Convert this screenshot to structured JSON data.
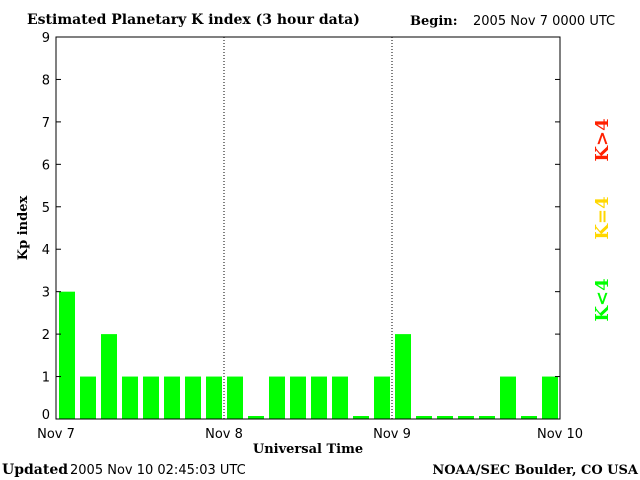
{
  "chart_data": {
    "type": "bar",
    "title": "Estimated Planetary K index (3 hour data)",
    "begin_label": "Begin:",
    "begin_value": "2005 Nov 7 0000 UTC",
    "xlabel": "Universal Time",
    "ylabel": "Kp index",
    "ylim": [
      0,
      9
    ],
    "yticks": [
      "0",
      "1",
      "2",
      "3",
      "4",
      "5",
      "6",
      "7",
      "8",
      "9"
    ],
    "xticks": [
      "Nov 7",
      "Nov 8",
      "Nov 9",
      "Nov 10"
    ],
    "interval_hours": 3,
    "values": [
      3,
      1,
      2,
      1,
      1,
      1,
      1,
      1,
      1,
      0,
      1,
      1,
      1,
      1,
      0,
      1,
      2,
      0,
      0,
      0,
      0,
      1,
      0,
      1
    ],
    "legend": [
      {
        "label": "K<4",
        "color": "#00ff00"
      },
      {
        "label": "K=4",
        "color": "#ffd700"
      },
      {
        "label": "K>4",
        "color": "#ff2000"
      }
    ],
    "legend_placement": "right",
    "footer_left_label": "Updated",
    "footer_left_value": "2005 Nov 10 02:45:03 UTC",
    "footer_right": "NOAA/SEC Boulder, CO USA"
  }
}
